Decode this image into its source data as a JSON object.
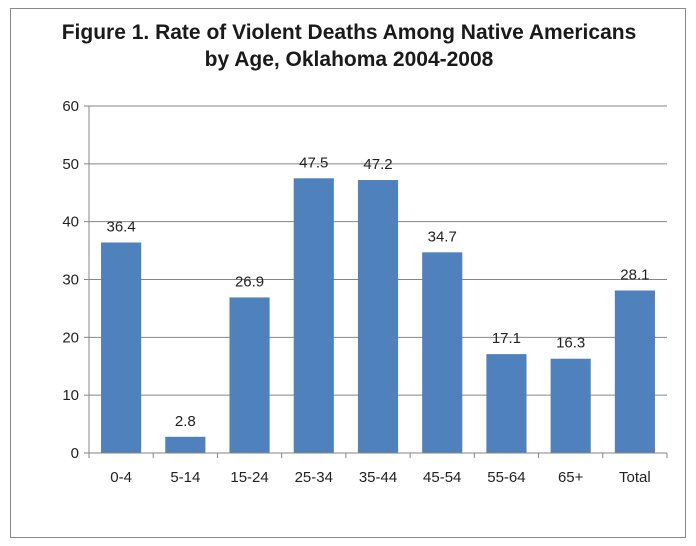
{
  "chart_data": {
    "type": "bar",
    "title_lines": [
      "Figure 1. Rate of Violent Deaths Among Native Americans",
      "by Age, Oklahoma 2004-2008"
    ],
    "xlabel": "",
    "ylabel": "",
    "categories": [
      "0-4",
      "5-14",
      "15-24",
      "25-34",
      "35-44",
      "45-54",
      "55-64",
      "65+",
      "Total"
    ],
    "values": [
      36.4,
      2.8,
      26.9,
      47.5,
      47.2,
      34.7,
      17.1,
      16.3,
      28.1
    ],
    "data_labels": [
      "36.4",
      "2.8",
      "26.9",
      "47.5",
      "47.2",
      "34.7",
      "17.1",
      "16.3",
      "28.1"
    ],
    "ylim": [
      0,
      60
    ],
    "yticks": [
      0,
      10,
      20,
      30,
      40,
      50,
      60
    ],
    "grid": true,
    "legend": "none",
    "bar_color": "#4f81bd",
    "grid_color": "#868686"
  }
}
